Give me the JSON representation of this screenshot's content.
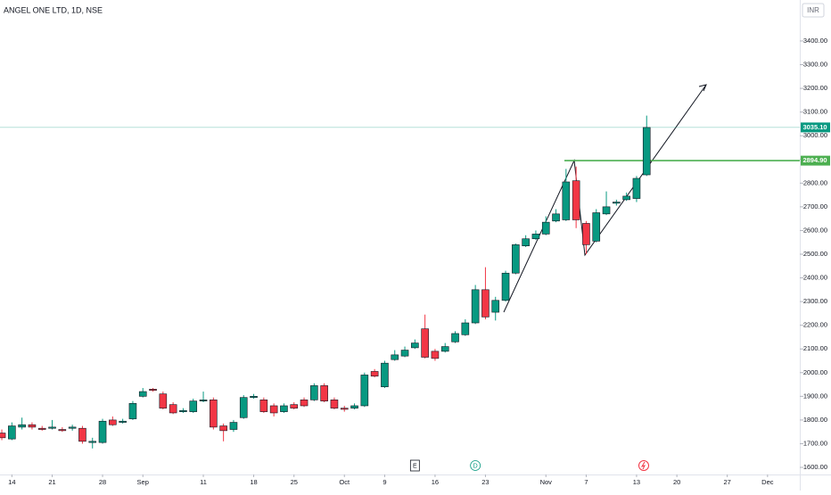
{
  "chart_data": {
    "type": "candlestick",
    "title": "ANGEL ONE LTD, 1D, NSE",
    "currency": "INR",
    "up_color": "#089981",
    "down_color": "#f23645",
    "open": [
      1745,
      1720,
      1770,
      1780,
      1765,
      1765,
      1760,
      1765,
      1765,
      1705,
      1705,
      1800,
      1790,
      1805,
      1900,
      1930,
      1910,
      1865,
      1835,
      1835,
      1880,
      1885,
      1775,
      1760,
      1810,
      1895,
      1885,
      1860,
      1835,
      1865,
      1885,
      1885,
      1945,
      1885,
      1850,
      1850,
      1860,
      2005,
      1940,
      2055,
      2070,
      2105,
      2185,
      2090,
      2090,
      2130,
      2160,
      2210,
      2350,
      2255,
      2305,
      2420,
      2535,
      2565,
      2585,
      2640,
      2645,
      2810,
      2630,
      2555,
      2670,
      2715,
      2730,
      2735,
      2835
    ],
    "high": [
      1760,
      1790,
      1810,
      1790,
      1775,
      1800,
      1770,
      1780,
      1775,
      1725,
      1805,
      1815,
      1805,
      1880,
      1935,
      1935,
      1920,
      1875,
      1850,
      1890,
      1920,
      1895,
      1785,
      1800,
      1905,
      1910,
      1895,
      1870,
      1870,
      1875,
      1895,
      1955,
      1955,
      1895,
      1860,
      1870,
      2000,
      2015,
      2050,
      2095,
      2110,
      2140,
      2245,
      2100,
      2125,
      2175,
      2225,
      2370,
      2445,
      2320,
      2430,
      2545,
      2580,
      2600,
      2660,
      2690,
      2860,
      2870,
      2640,
      2690,
      2765,
      2730,
      2760,
      2830,
      3085
    ],
    "low": [
      1715,
      1715,
      1760,
      1760,
      1755,
      1760,
      1750,
      1755,
      1700,
      1680,
      1700,
      1775,
      1785,
      1800,
      1895,
      1920,
      1845,
      1825,
      1830,
      1830,
      1875,
      1760,
      1710,
      1750,
      1805,
      1890,
      1830,
      1815,
      1830,
      1845,
      1855,
      1880,
      1875,
      1845,
      1835,
      1845,
      1855,
      1980,
      1935,
      2050,
      2065,
      2100,
      2060,
      2050,
      2085,
      2125,
      2155,
      2205,
      2225,
      2220,
      2300,
      2415,
      2530,
      2560,
      2580,
      2635,
      2640,
      2610,
      2500,
      2550,
      2665,
      2705,
      2725,
      2720,
      2830
    ],
    "close": [
      1725,
      1775,
      1780,
      1770,
      1760,
      1770,
      1755,
      1770,
      1710,
      1710,
      1795,
      1780,
      1795,
      1870,
      1920,
      1925,
      1850,
      1830,
      1840,
      1880,
      1885,
      1770,
      1755,
      1790,
      1895,
      1900,
      1835,
      1830,
      1860,
      1850,
      1860,
      1945,
      1880,
      1850,
      1845,
      1860,
      1990,
      1985,
      2040,
      2075,
      2095,
      2125,
      2065,
      2060,
      2110,
      2165,
      2210,
      2350,
      2235,
      2305,
      2420,
      2540,
      2565,
      2585,
      2635,
      2670,
      2805,
      2645,
      2540,
      2675,
      2700,
      2720,
      2745,
      2820,
      3035
    ],
    "xlim": [
      -0.18,
      79.2
    ],
    "xticks": [
      {
        "value": 1,
        "label": "14"
      },
      {
        "value": 5,
        "label": "21"
      },
      {
        "value": 10,
        "label": "28"
      },
      {
        "value": 14,
        "label": "Sep"
      },
      {
        "value": 20,
        "label": "11"
      },
      {
        "value": 25,
        "label": "18"
      },
      {
        "value": 29,
        "label": "25"
      },
      {
        "value": 34,
        "label": "Oct"
      },
      {
        "value": 38,
        "label": "9"
      },
      {
        "value": 43,
        "label": "16"
      },
      {
        "value": 48,
        "label": "23"
      },
      {
        "value": 54,
        "label": "Nov"
      },
      {
        "value": 58,
        "label": "7"
      },
      {
        "value": 63,
        "label": "13"
      },
      {
        "value": 67,
        "label": "20"
      },
      {
        "value": 72,
        "label": "27"
      },
      {
        "value": 76,
        "label": "Dec"
      }
    ],
    "ylim": [
      1570,
      3573
    ],
    "yticks": [
      {
        "value": 1600,
        "label": "1600.00"
      },
      {
        "value": 1700,
        "label": "1700.00"
      },
      {
        "value": 1800,
        "label": "1800.00"
      },
      {
        "value": 1900,
        "label": "1900.00"
      },
      {
        "value": 2000,
        "label": "2000.00"
      },
      {
        "value": 2100,
        "label": "2100.00"
      },
      {
        "value": 2200,
        "label": "2200.00"
      },
      {
        "value": 2300,
        "label": "2300.00"
      },
      {
        "value": 2400,
        "label": "2400.00"
      },
      {
        "value": 2500,
        "label": "2500.00"
      },
      {
        "value": 2600,
        "label": "2600.00"
      },
      {
        "value": 2700,
        "label": "2700.00"
      },
      {
        "value": 2800,
        "label": "2800.00"
      },
      {
        "value": 2900,
        "label": "2900.00"
      },
      {
        "value": 3000,
        "label": "3000.00"
      },
      {
        "value": 3100,
        "label": "3100.00"
      },
      {
        "value": 3200,
        "label": "3200.00"
      },
      {
        "value": 3300,
        "label": "3300.00"
      },
      {
        "value": 3400,
        "label": "3400.00"
      }
    ],
    "price_lines": [
      {
        "value": 3035.1,
        "label": "3035.10",
        "color": "#089981"
      },
      {
        "value": 2894.9,
        "label": "2894.90",
        "color": "#4caf50"
      }
    ],
    "events": [
      {
        "x": 41,
        "label": "E"
      },
      {
        "x": 47,
        "label": "D"
      }
    ]
  }
}
